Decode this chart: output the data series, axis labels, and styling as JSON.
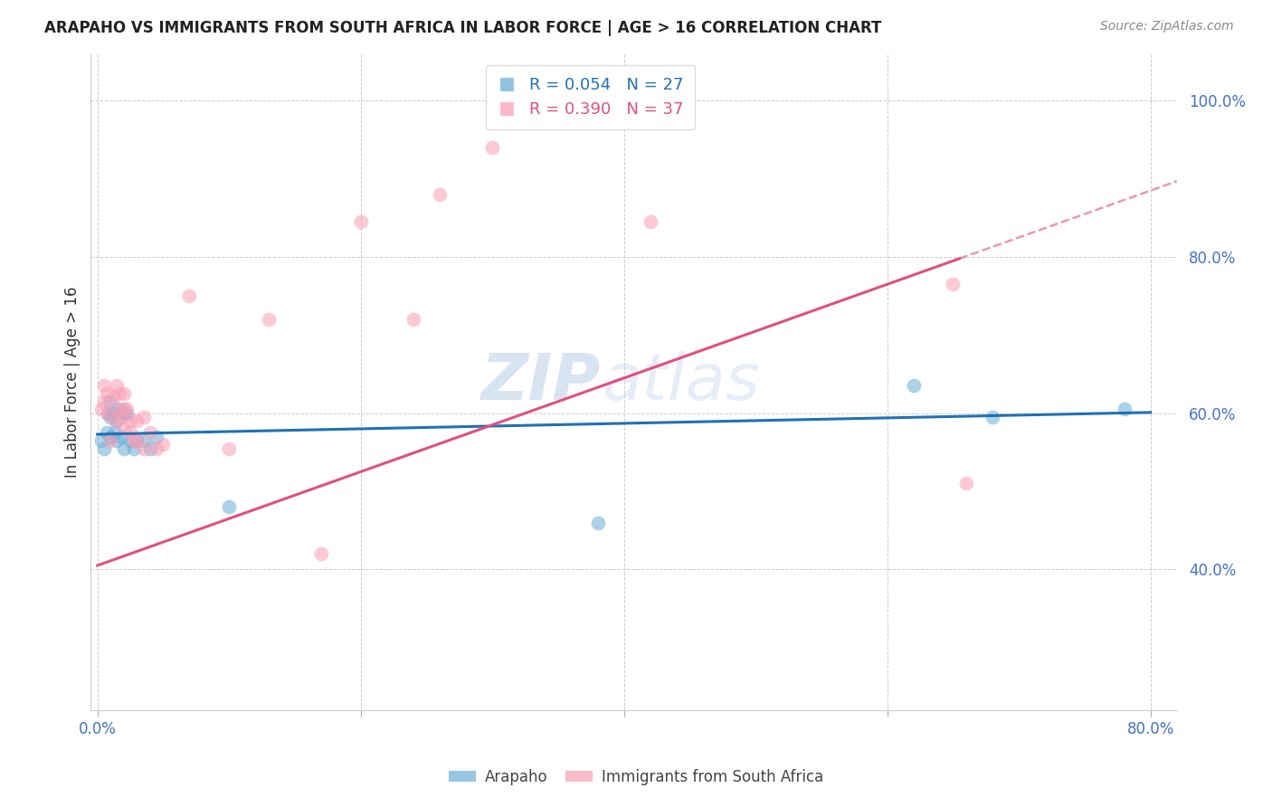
{
  "title": "ARAPAHO VS IMMIGRANTS FROM SOUTH AFRICA IN LABOR FORCE | AGE > 16 CORRELATION CHART",
  "source": "Source: ZipAtlas.com",
  "ylabel": "In Labor Force | Age > 16",
  "xlabel_ticks": [
    "0.0%",
    "",
    "",
    "",
    "80.0%"
  ],
  "xlabel_vals": [
    0.0,
    0.2,
    0.4,
    0.6,
    0.8
  ],
  "ylabel_ticks": [
    "40.0%",
    "60.0%",
    "80.0%",
    "100.0%"
  ],
  "ylabel_vals": [
    0.4,
    0.6,
    0.8,
    1.0
  ],
  "xlim": [
    -0.005,
    0.82
  ],
  "ylim": [
    0.22,
    1.06
  ],
  "blue_scatter_x": [
    0.003,
    0.005,
    0.007,
    0.008,
    0.009,
    0.01,
    0.01,
    0.012,
    0.013,
    0.015,
    0.015,
    0.017,
    0.018,
    0.02,
    0.02,
    0.022,
    0.025,
    0.028,
    0.03,
    0.035,
    0.04,
    0.045,
    0.1,
    0.38,
    0.62,
    0.68,
    0.78
  ],
  "blue_scatter_y": [
    0.565,
    0.555,
    0.575,
    0.6,
    0.615,
    0.57,
    0.595,
    0.6,
    0.575,
    0.565,
    0.59,
    0.605,
    0.57,
    0.555,
    0.6,
    0.6,
    0.565,
    0.555,
    0.565,
    0.565,
    0.555,
    0.57,
    0.48,
    0.46,
    0.635,
    0.595,
    0.605
  ],
  "pink_scatter_x": [
    0.003,
    0.005,
    0.005,
    0.007,
    0.008,
    0.01,
    0.012,
    0.013,
    0.015,
    0.015,
    0.017,
    0.018,
    0.02,
    0.02,
    0.02,
    0.022,
    0.025,
    0.025,
    0.028,
    0.03,
    0.03,
    0.035,
    0.035,
    0.04,
    0.045,
    0.05,
    0.07,
    0.1,
    0.13,
    0.17,
    0.2,
    0.24,
    0.26,
    0.3,
    0.42,
    0.65,
    0.66
  ],
  "pink_scatter_y": [
    0.605,
    0.615,
    0.635,
    0.625,
    0.6,
    0.565,
    0.62,
    0.59,
    0.605,
    0.635,
    0.625,
    0.595,
    0.58,
    0.605,
    0.625,
    0.605,
    0.575,
    0.59,
    0.565,
    0.565,
    0.59,
    0.555,
    0.595,
    0.575,
    0.555,
    0.56,
    0.75,
    0.555,
    0.72,
    0.42,
    0.845,
    0.72,
    0.88,
    0.94,
    0.845,
    0.765,
    0.51
  ],
  "blue_r": 0.054,
  "blue_n": 27,
  "pink_r": 0.39,
  "pink_n": 37,
  "blue_color": "#6baed6",
  "pink_color": "#fa9fb5",
  "blue_line_color": "#2171b5",
  "pink_line_color": "#e05080",
  "watermark_zip": "ZIP",
  "watermark_atlas": "atlas",
  "background_color": "#ffffff"
}
